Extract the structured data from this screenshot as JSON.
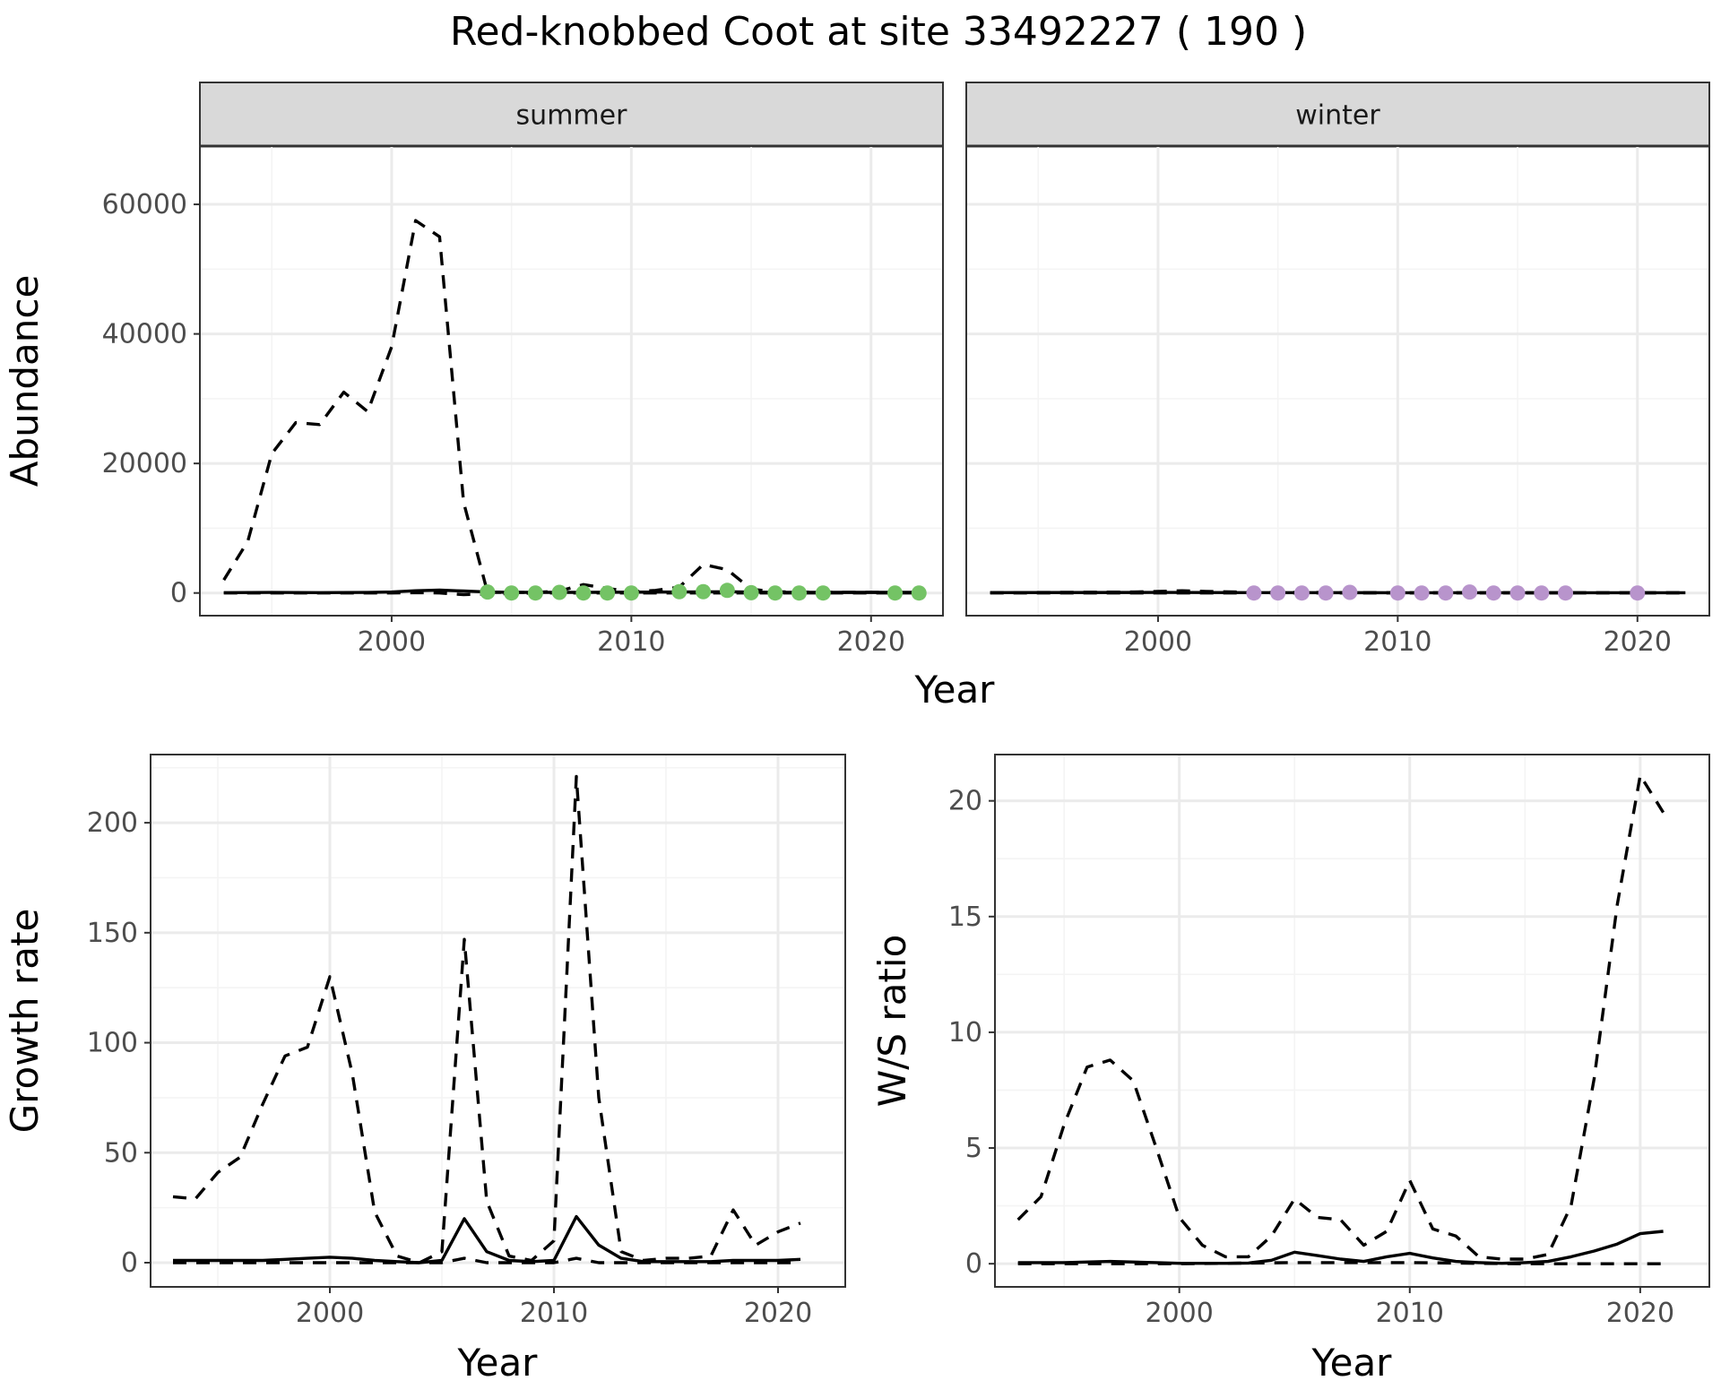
{
  "figure_title": "Red-knobbed Coot at site 33492227 ( 190 )",
  "colors": {
    "summer_points": "#74c365",
    "winter_points": "#b894cc",
    "line": "#000000",
    "strip_bg": "#d9d9d9"
  },
  "chart_data": [
    {
      "id": "abundance",
      "type": "line",
      "facets": [
        "summer",
        "winter"
      ],
      "xlabel": "Year",
      "ylabel": "Abundance",
      "xlim": [
        1992,
        2023
      ],
      "ylim": [
        -3500,
        69000
      ],
      "x_ticks": [
        2000,
        2010,
        2020
      ],
      "y_ticks": [
        0,
        20000,
        40000,
        60000
      ],
      "panels": [
        {
          "facet": "summer",
          "upper_dashed": {
            "x": [
              1993,
              1994,
              1995,
              1996,
              1997,
              1998,
              1999,
              2000,
              2001,
              2002,
              2003,
              2004
            ],
            "y": [
              2000,
              8000,
              21500,
              26300,
              26000,
              31000,
              28000,
              38000,
              57500,
              55000,
              14000,
              100
            ]
          },
          "upper_dashed_late": {
            "x": [
              2004,
              2005,
              2006,
              2007,
              2008,
              2009,
              2010,
              2011,
              2012,
              2013,
              2014,
              2015,
              2016,
              2017,
              2018,
              2019,
              2020,
              2021,
              2022
            ],
            "y": [
              100,
              100,
              80,
              300,
              1300,
              700,
              200,
              400,
              900,
              4400,
              3600,
              600,
              200,
              150,
              100,
              100,
              100,
              100,
              100
            ]
          },
          "lower_dashed": {
            "x": [
              1993,
              1997,
              2000,
              2001,
              2002,
              2003,
              2006,
              2010,
              2015,
              2022
            ],
            "y": [
              0,
              0,
              0,
              50,
              0,
              -250,
              0,
              0,
              0,
              0
            ]
          },
          "estimate": {
            "x": [
              1993,
              1995,
              1997,
              1999,
              2000,
              2001,
              2002,
              2003,
              2004,
              2005,
              2008,
              2012,
              2014,
              2016,
              2022
            ],
            "y": [
              50,
              80,
              60,
              80,
              150,
              350,
              450,
              300,
              150,
              100,
              100,
              150,
              200,
              100,
              100
            ]
          },
          "points": {
            "x": [
              2004,
              2005,
              2006,
              2007,
              2008,
              2009,
              2010,
              2012,
              2013,
              2014,
              2015,
              2016,
              2017,
              2018,
              2021,
              2022
            ],
            "y": [
              150,
              0,
              0,
              100,
              0,
              0,
              0,
              200,
              200,
              400,
              50,
              0,
              0,
              0,
              0,
              0
            ]
          }
        },
        {
          "facet": "winter",
          "upper_dashed": {
            "x": [
              1993,
              1996,
              1999,
              2001,
              2002,
              2004,
              2010,
              2016,
              2022
            ],
            "y": [
              50,
              100,
              150,
              350,
              250,
              100,
              50,
              50,
              50
            ]
          },
          "lower_dashed": {
            "x": [
              1993,
              2022
            ],
            "y": [
              0,
              0
            ]
          },
          "estimate": {
            "x": [
              1993,
              2000,
              2004,
              2010,
              2016,
              2022
            ],
            "y": [
              60,
              80,
              60,
              40,
              40,
              40
            ]
          },
          "points": {
            "x": [
              2004,
              2005,
              2006,
              2007,
              2008,
              2010,
              2011,
              2012,
              2013,
              2014,
              2015,
              2016,
              2017,
              2020
            ],
            "y": [
              0,
              0,
              0,
              0,
              100,
              0,
              0,
              0,
              150,
              0,
              0,
              0,
              0,
              0
            ]
          }
        }
      ]
    },
    {
      "id": "growth",
      "type": "line",
      "xlabel": "Year",
      "ylabel": "Growth rate",
      "xlim": [
        1992,
        2023
      ],
      "ylim": [
        -11,
        231
      ],
      "x_ticks": [
        2000,
        2010,
        2020
      ],
      "y_ticks": [
        0,
        50,
        100,
        150,
        200
      ],
      "upper_dashed": {
        "x": [
          1993,
          1994,
          1995,
          1996,
          1997,
          1998,
          1999,
          2000,
          2001,
          2002,
          2003,
          2004,
          2005,
          2006,
          2007,
          2008,
          2009,
          2010,
          2011,
          2012,
          2013,
          2014,
          2015,
          2016,
          2017,
          2018,
          2019,
          2020,
          2021
        ],
        "y": [
          30,
          29,
          41,
          48,
          72,
          94,
          98,
          130,
          86,
          23,
          3,
          0,
          5,
          147,
          28,
          3,
          1,
          10,
          221,
          75,
          5,
          1,
          2,
          2,
          3,
          24,
          8,
          14,
          18
        ]
      },
      "lower_dashed": {
        "x": [
          1993,
          1996,
          2000,
          2003,
          2005,
          2006,
          2007,
          2010,
          2011,
          2012,
          2016,
          2021
        ],
        "y": [
          0,
          0,
          0,
          0,
          0,
          2,
          0,
          0,
          2,
          0,
          0,
          0
        ]
      },
      "estimate": {
        "x": [
          1993,
          1994,
          1995,
          1996,
          1997,
          1998,
          1999,
          2000,
          2001,
          2002,
          2003,
          2004,
          2005,
          2006,
          2007,
          2008,
          2009,
          2010,
          2011,
          2012,
          2013,
          2014,
          2015,
          2016,
          2017,
          2018,
          2019,
          2020,
          2021
        ],
        "y": [
          1,
          1,
          1,
          1,
          1,
          1.5,
          2,
          2.5,
          2,
          1,
          0.5,
          0,
          1,
          20,
          5,
          1,
          0.5,
          1,
          21,
          8,
          2,
          0.5,
          0.5,
          0.5,
          0.5,
          1,
          1,
          1,
          1.5
        ]
      }
    },
    {
      "id": "ws_ratio",
      "type": "line",
      "xlabel": "Year",
      "ylabel": "W/S ratio",
      "xlim": [
        1992,
        2023
      ],
      "ylim": [
        -1,
        22
      ],
      "x_ticks": [
        2000,
        2010,
        2020
      ],
      "y_ticks": [
        0,
        5,
        10,
        15,
        20
      ],
      "upper_dashed": {
        "x": [
          1993,
          1994,
          1995,
          1996,
          1997,
          1998,
          1999,
          2000,
          2001,
          2002,
          2003,
          2004,
          2005,
          2006,
          2007,
          2008,
          2009,
          2010,
          2011,
          2012,
          2013,
          2014,
          2015,
          2016,
          2017,
          2018,
          2019,
          2020,
          2021
        ],
        "y": [
          1.9,
          2.9,
          6.0,
          8.5,
          8.8,
          7.9,
          5.0,
          2.0,
          0.8,
          0.3,
          0.3,
          1.2,
          2.8,
          2.0,
          1.9,
          0.8,
          1.4,
          3.6,
          1.5,
          1.2,
          0.3,
          0.2,
          0.2,
          0.4,
          2.5,
          8.0,
          15.5,
          21.1,
          19.5
        ]
      },
      "lower_dashed": {
        "x": [
          1993,
          2000,
          2005,
          2010,
          2015,
          2021
        ],
        "y": [
          0,
          0,
          0.05,
          0.05,
          0,
          0
        ]
      },
      "estimate": {
        "x": [
          1993,
          1995,
          1997,
          1999,
          2000,
          2001,
          2002,
          2003,
          2004,
          2005,
          2006,
          2007,
          2008,
          2009,
          2010,
          2011,
          2012,
          2013,
          2014,
          2015,
          2016,
          2017,
          2018,
          2019,
          2020,
          2021
        ],
        "y": [
          0.05,
          0.05,
          0.1,
          0.05,
          0.02,
          0.02,
          0.02,
          0.03,
          0.15,
          0.5,
          0.35,
          0.2,
          0.1,
          0.3,
          0.45,
          0.25,
          0.1,
          0.05,
          0.02,
          0.05,
          0.1,
          0.3,
          0.55,
          0.85,
          1.3,
          1.4
        ]
      }
    }
  ]
}
